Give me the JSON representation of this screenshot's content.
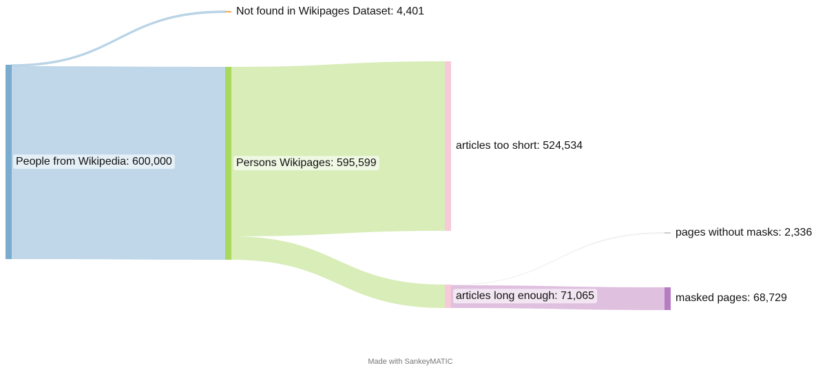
{
  "chart_data": {
    "type": "sankey",
    "nodes": [
      {
        "id": "people",
        "name": "People from Wikipedia",
        "value": "600,000",
        "color": "#7aaccf"
      },
      {
        "id": "notfound",
        "name": "Not found in Wikipages Dataset",
        "value": "4,401",
        "color": "#f4a94c"
      },
      {
        "id": "persons",
        "name": "Persons Wikipages",
        "value": "595,599",
        "color": "#a8d85c"
      },
      {
        "id": "short",
        "name": "articles too short",
        "value": "524,534",
        "color": "#f7c9d9"
      },
      {
        "id": "long",
        "name": "articles long enough",
        "value": "71,065",
        "color": "#f7c9d9"
      },
      {
        "id": "nomask",
        "name": "pages without masks",
        "value": "2,336",
        "color": "#cccccc"
      },
      {
        "id": "masked",
        "name": "masked pages",
        "value": "68,729",
        "color": "#b57dc2"
      }
    ],
    "links": [
      {
        "source": "people",
        "target": "notfound",
        "value": 4401,
        "color": "#b8d3e6"
      },
      {
        "source": "people",
        "target": "persons",
        "value": 595599,
        "color": "#b8d3e6"
      },
      {
        "source": "persons",
        "target": "short",
        "value": 524534,
        "color": "#d4ebb0"
      },
      {
        "source": "persons",
        "target": "long",
        "value": 71065,
        "color": "#d4ebb0"
      },
      {
        "source": "long",
        "target": "nomask",
        "value": 2336,
        "color": "#e6e6e6"
      },
      {
        "source": "long",
        "target": "masked",
        "value": 68729,
        "color": "#dcb9db"
      }
    ],
    "credit": "Made with SankeyMATIC"
  }
}
